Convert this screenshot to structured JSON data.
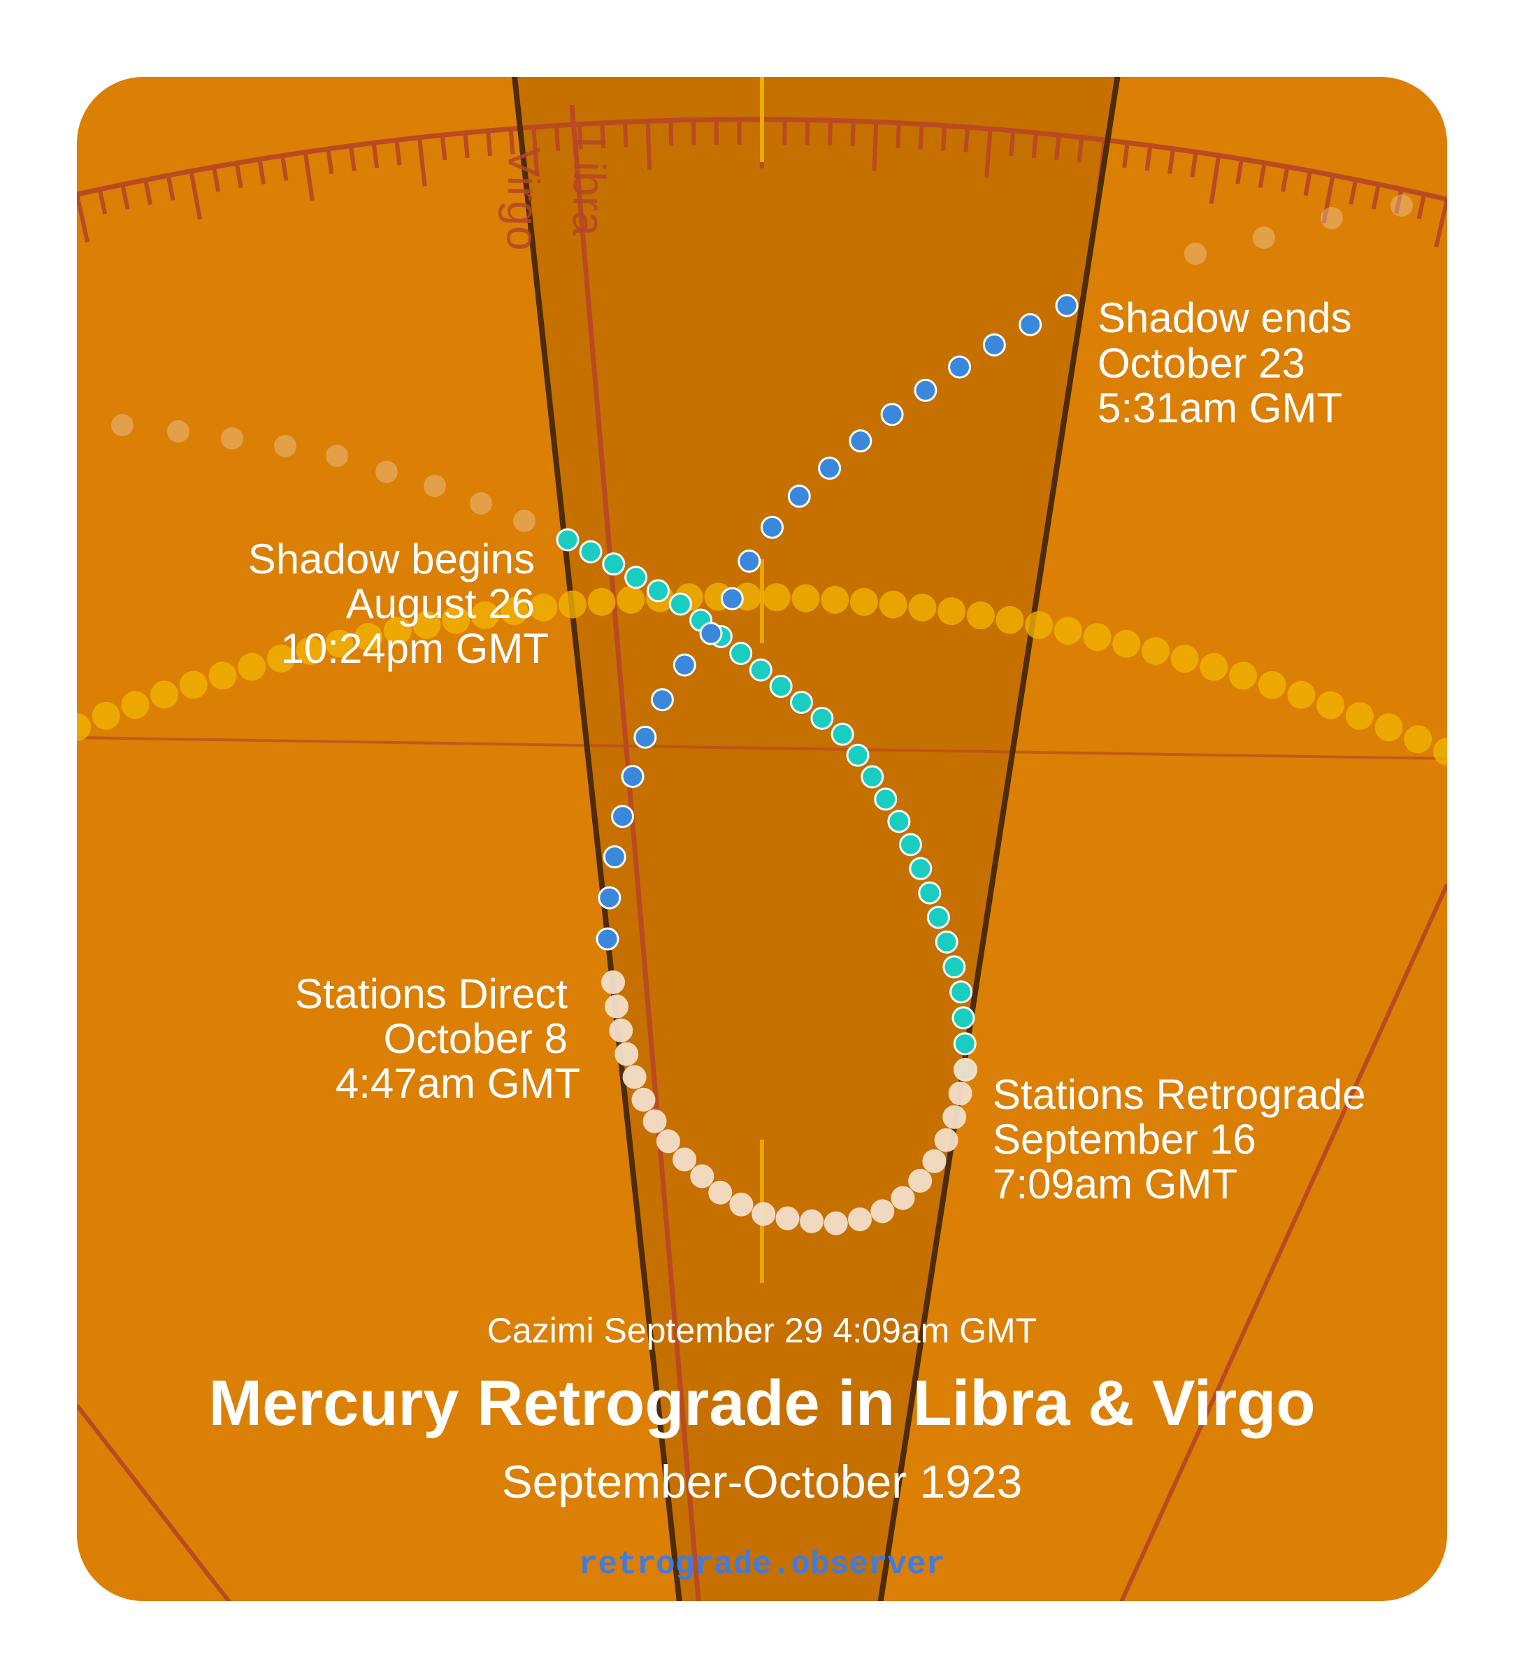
{
  "signs": {
    "left": "Virgo",
    "right": "Libra"
  },
  "events": {
    "shadow_begins": {
      "title": "Shadow begins",
      "date": "August 26",
      "time": "10:24pm GMT"
    },
    "stations_retrograde": {
      "title": "Stations Retrograde",
      "date": "September 16",
      "time": "7:09am GMT"
    },
    "stations_direct": {
      "title": "Stations Direct",
      "date": "October 8",
      "time": "4:47am GMT"
    },
    "shadow_ends": {
      "title": "Shadow ends",
      "date": "October 23",
      "time": "5:31am GMT"
    }
  },
  "cazimi": "Cazimi September 29 4:09am GMT",
  "title": "Mercury Retrograde in Libra & Virgo",
  "subtitle": "September-October 1923",
  "brand": "retrograde.observer",
  "colors": {
    "background": "#db7f05",
    "shadow_zone": "#c67000",
    "ecliptic_ticks": "#b94a22",
    "sign_boundary": "#4e2c0b",
    "sun": "#f2b400",
    "pre_shadow": "#19cdc0",
    "retrograde": "#f3dfc9",
    "post_shadow": "#3a88dc",
    "brand": "#3f7be0"
  },
  "path_phases": [
    "pre-shadow",
    "retrograde",
    "post-shadow"
  ]
}
